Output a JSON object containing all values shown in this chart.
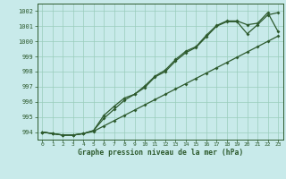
{
  "title": "Graphe pression niveau de la mer (hPa)",
  "xlim": [
    -0.5,
    23.5
  ],
  "ylim": [
    993.5,
    1002.5
  ],
  "yticks": [
    994,
    995,
    996,
    997,
    998,
    999,
    1000,
    1001,
    1002
  ],
  "xticks": [
    0,
    1,
    2,
    3,
    4,
    5,
    6,
    7,
    8,
    9,
    10,
    11,
    12,
    13,
    14,
    15,
    16,
    17,
    18,
    19,
    20,
    21,
    22,
    23
  ],
  "bg_color": "#c8eaea",
  "grid_color": "#99ccbb",
  "line_color": "#2d5a2d",
  "s1": [
    994.0,
    993.9,
    993.8,
    993.8,
    993.9,
    994.1,
    995.1,
    995.7,
    996.25,
    996.5,
    997.05,
    997.7,
    998.1,
    998.8,
    999.35,
    999.65,
    1000.4,
    1001.05,
    1001.35,
    1001.35,
    1001.1,
    1001.2,
    1001.9,
    1000.65
  ],
  "s2": [
    994.0,
    993.9,
    993.8,
    993.8,
    993.9,
    994.1,
    994.9,
    995.5,
    996.1,
    996.5,
    996.95,
    997.65,
    998.0,
    998.7,
    999.25,
    999.6,
    1000.3,
    1001.0,
    1001.3,
    1001.3,
    1000.5,
    1001.1,
    1001.75,
    1001.9
  ],
  "s3": [
    994.0,
    993.9,
    993.8,
    993.8,
    993.9,
    994.05,
    994.4,
    994.75,
    995.1,
    995.45,
    995.8,
    996.15,
    996.5,
    996.85,
    997.2,
    997.55,
    997.9,
    998.25,
    998.6,
    998.95,
    999.3,
    999.65,
    1000.0,
    1000.35
  ]
}
